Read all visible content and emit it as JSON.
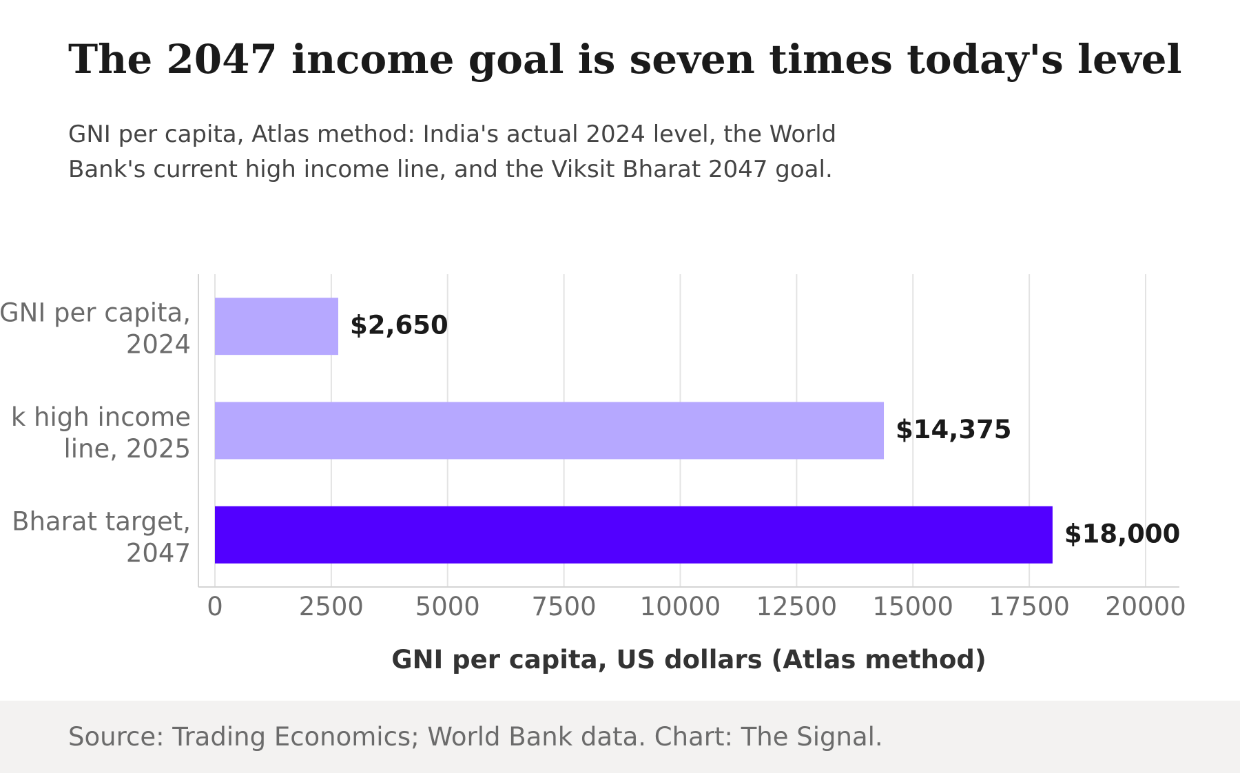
{
  "header": {
    "title": "The 2047 income goal is seven times today's level",
    "subtitle": "GNI per capita, Atlas method: India's actual 2024 level, the World Bank's current high income line, and the Viksit Bharat 2047 goal."
  },
  "chart_data": {
    "type": "bar",
    "orientation": "horizontal",
    "categories": [
      [
        "GNI per capita,",
        "2024"
      ],
      [
        "k high income",
        "line, 2025"
      ],
      [
        "Bharat target,",
        "2047"
      ]
    ],
    "values": [
      2650,
      14375,
      18000
    ],
    "value_labels": [
      "$2,650",
      "$14,375",
      "$18,000"
    ],
    "bar_colors": [
      "#b6a8ff",
      "#b6a8ff",
      "#5200ff"
    ],
    "xlabel": "GNI per capita, US dollars (Atlas method)",
    "xlim": [
      0,
      20000
    ],
    "xticks": [
      0,
      2500,
      5000,
      7500,
      10000,
      12500,
      15000,
      17500,
      20000
    ],
    "xtick_labels": [
      "0",
      "2500",
      "5000",
      "7500",
      "10000",
      "12500",
      "15000",
      "17500",
      "20000"
    ],
    "grid": true,
    "legend": "none"
  },
  "footer": {
    "source": "Source: Trading Economics; World Bank data. Chart: The Signal."
  }
}
